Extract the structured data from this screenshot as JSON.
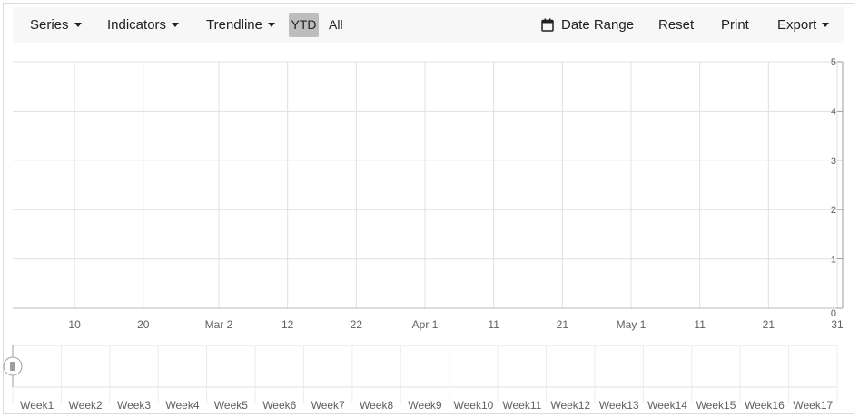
{
  "toolbar": {
    "series_label": "Series",
    "indicators_label": "Indicators",
    "trendline_label": "Trendline",
    "ytd_label": "YTD",
    "all_label": "All",
    "date_range_label": "Date Range",
    "reset_label": "Reset",
    "print_label": "Print",
    "export_label": "Export"
  },
  "icons": {
    "calendar": "calendar-icon",
    "dropdown": "chevron-down-icon",
    "navigator_handle": "slider-handle-icon"
  },
  "colors": {
    "toolbar_bg": "#f7f7f7",
    "selected_period_bg": "#bdbdbd",
    "grid": "#e0e0e0",
    "axis_text": "#5f5f5f"
  },
  "chart_data": {
    "type": "line",
    "title": "",
    "series": [],
    "x_axis": {
      "type": "date",
      "tick_labels": [
        "10",
        "20",
        "Mar 2",
        "12",
        "22",
        "Apr 1",
        "11",
        "21",
        "May 1",
        "11",
        "21",
        "31"
      ],
      "tick_dates": [
        "2024-02-10",
        "2024-02-20",
        "2024-03-02",
        "2024-03-12",
        "2024-03-22",
        "2024-04-01",
        "2024-04-11",
        "2024-04-21",
        "2024-05-01",
        "2024-05-11",
        "2024-05-21",
        "2024-05-31"
      ],
      "range": [
        "2024-02-01",
        "2024-05-31"
      ]
    },
    "y_axis": {
      "position": "right",
      "range": [
        0,
        5
      ],
      "tick_labels": [
        "0",
        "1",
        "2",
        "3",
        "4",
        "5"
      ]
    },
    "grid": true,
    "legend": "none"
  },
  "navigator": {
    "labels": [
      "Week1",
      "Week2",
      "Week3",
      "Week4",
      "Week5",
      "Week6",
      "Week7",
      "Week8",
      "Week9",
      "Week10",
      "Week11",
      "Week12",
      "Week13",
      "Week14",
      "Week15",
      "Week16",
      "Week17"
    ],
    "selected_fraction_start": 0,
    "selected_fraction_end": 0
  }
}
